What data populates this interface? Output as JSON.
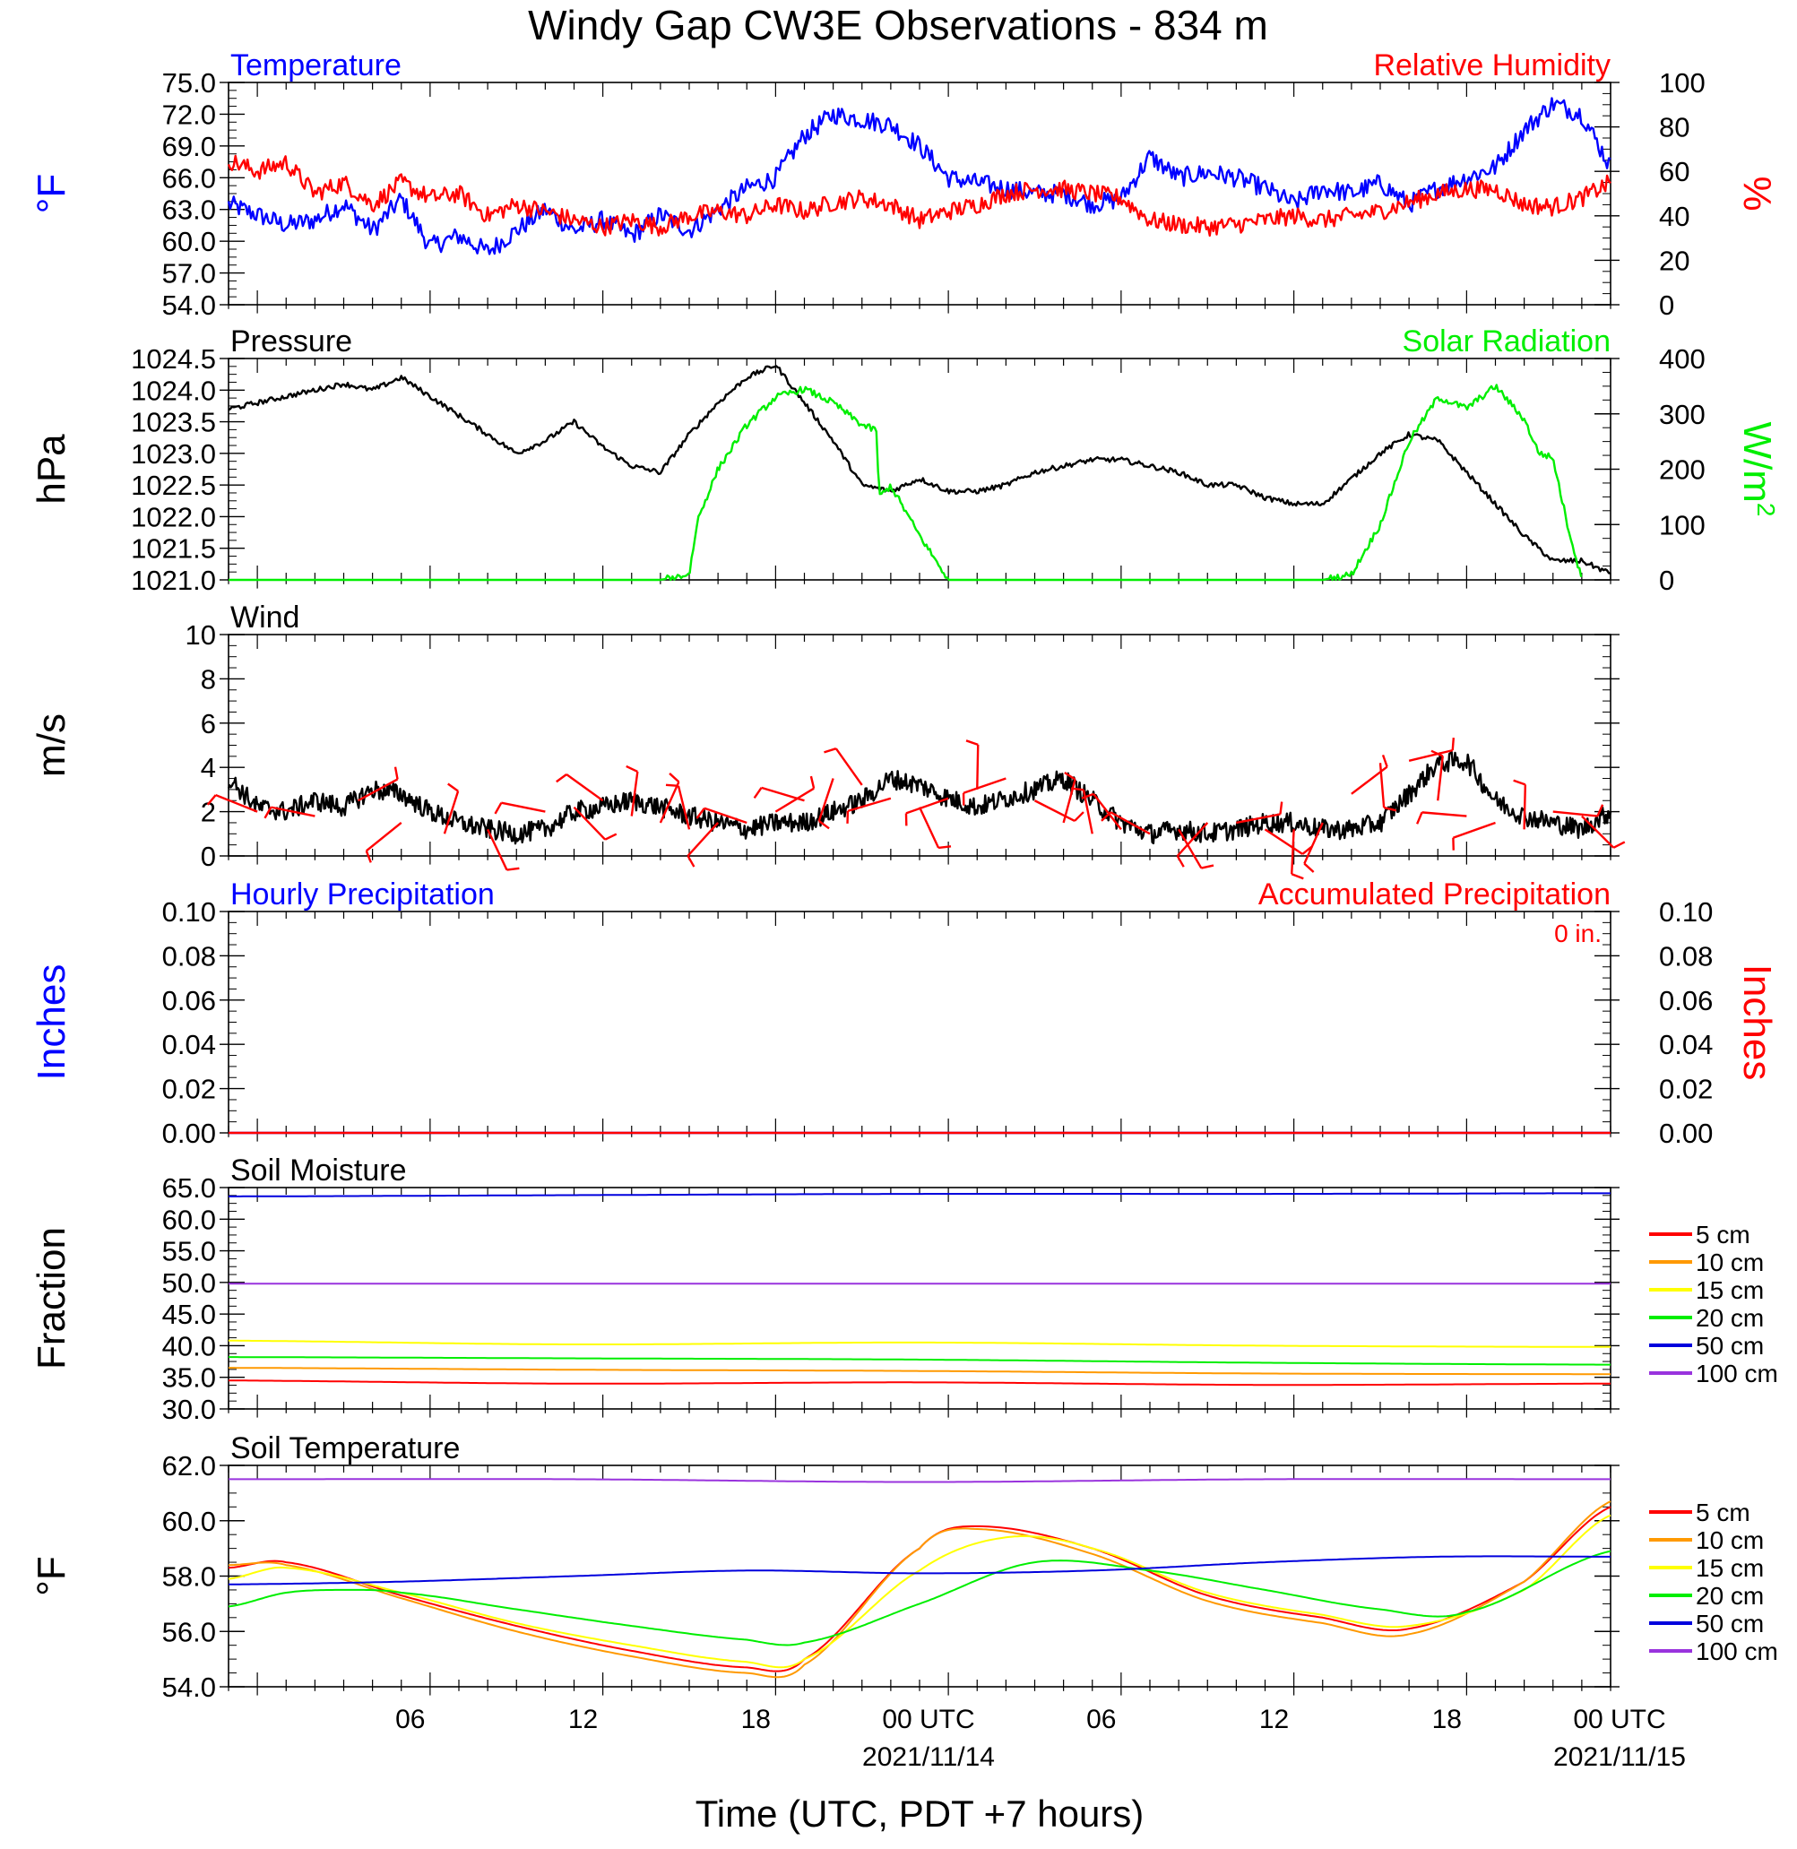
{
  "figure": {
    "title": "Windy Gap CW3E Observations - 834 m",
    "xlabel": "Time (UTC, PDT +7 hours)",
    "xticks": [
      "06",
      "12",
      "18",
      "00 UTC",
      "06",
      "12",
      "18",
      "00 UTC"
    ],
    "xdates": [
      "2021/11/14",
      "2021/11/15"
    ]
  },
  "colors": {
    "temperature": "#0000ff",
    "humidity": "#ff0000",
    "pressure": "#000000",
    "solar": "#00ee00",
    "wind": "#000000",
    "barbs": "#ff0000",
    "hourly_precip": "#0000ff",
    "accum_precip": "#ff0000",
    "depths": [
      "#ff0000",
      "#ff9900",
      "#ffff00",
      "#00ee00",
      "#0000dd",
      "#9933dd"
    ]
  },
  "chart_data": [
    {
      "type": "line",
      "title_left": "Temperature",
      "title_right": "Relative Humidity",
      "ylabel_left": "°F",
      "ylabel_right": "%",
      "yticks_left": [
        "54.0",
        "57.0",
        "60.0",
        "63.0",
        "66.0",
        "69.0",
        "72.0",
        "75.0"
      ],
      "yticks_right": [
        "0",
        "20",
        "40",
        "60",
        "80",
        "100"
      ],
      "ylim_left": [
        54,
        75
      ],
      "ylim_right": [
        0,
        100
      ],
      "xlim_hours": [
        -1,
        47
      ],
      "series": [
        {
          "axis": "left",
          "x": [
            -1,
            0,
            1,
            2,
            3,
            4,
            5,
            6,
            7,
            8,
            9,
            10,
            11,
            12,
            13,
            14,
            15,
            16,
            17,
            18,
            19,
            20,
            21,
            22,
            23,
            24,
            25,
            26,
            27,
            28,
            29,
            30,
            31,
            32,
            33,
            34,
            35,
            36,
            37,
            38,
            39,
            40,
            41,
            42,
            43,
            44,
            45,
            46,
            47
          ],
          "y": [
            63.5,
            62.5,
            61.5,
            62,
            63.5,
            61,
            64,
            59.5,
            60.5,
            59,
            61,
            63,
            61,
            62,
            60.5,
            62.5,
            61,
            63,
            65,
            66,
            70,
            72,
            71.5,
            71,
            69,
            66,
            65.5,
            65,
            64.5,
            64.5,
            63.5,
            64,
            68,
            66,
            66.5,
            66,
            65,
            63.5,
            65,
            64.5,
            65.5,
            63.5,
            65,
            66,
            67,
            70.5,
            73,
            72,
            67
          ]
        },
        {
          "axis": "right",
          "x": [
            -1,
            0,
            1,
            2,
            3,
            4,
            5,
            6,
            7,
            8,
            9,
            10,
            11,
            12,
            13,
            14,
            15,
            16,
            17,
            18,
            19,
            20,
            21,
            22,
            23,
            24,
            25,
            26,
            27,
            28,
            29,
            30,
            31,
            32,
            33,
            34,
            35,
            36,
            37,
            38,
            39,
            40,
            41,
            42,
            43,
            44,
            45,
            46,
            47
          ],
          "y": [
            65,
            60,
            64,
            50,
            55,
            45,
            55,
            48,
            50,
            40,
            45,
            42,
            38,
            35,
            38,
            35,
            40,
            42,
            40,
            45,
            42,
            46,
            48,
            45,
            38,
            42,
            45,
            50,
            52,
            52,
            50,
            48,
            38,
            36,
            35,
            36,
            38,
            40,
            38,
            40,
            42,
            46,
            50,
            52,
            52,
            45,
            44,
            48,
            55
          ]
        }
      ]
    },
    {
      "type": "line",
      "title_left": "Pressure",
      "title_right": "Solar Radiation",
      "ylabel_left": "hPa",
      "ylabel_right": "W/m",
      "ylabel_right_sup": "2",
      "yticks_left": [
        "1021.0",
        "1021.5",
        "1022.0",
        "1022.5",
        "1023.0",
        "1023.5",
        "1024.0",
        "1024.5"
      ],
      "yticks_right": [
        "0",
        "100",
        "200",
        "300",
        "400"
      ],
      "ylim_left": [
        1021,
        1024.5
      ],
      "ylim_right": [
        0,
        400
      ],
      "xlim_hours": [
        -1,
        47
      ],
      "series": [
        {
          "axis": "left",
          "x": [
            -1,
            0,
            1,
            2,
            3,
            4,
            5,
            6,
            7,
            8,
            9,
            10,
            11,
            12,
            13,
            14,
            15,
            16,
            17,
            18,
            19,
            20,
            21,
            22,
            23,
            24,
            25,
            26,
            27,
            28,
            29,
            30,
            31,
            32,
            33,
            34,
            35,
            36,
            37,
            38,
            39,
            40,
            41,
            42,
            43,
            44,
            45,
            46,
            47
          ],
          "y": [
            1023.7,
            1023.8,
            1023.9,
            1024.0,
            1024.1,
            1024.0,
            1024.2,
            1023.9,
            1023.6,
            1023.3,
            1023.0,
            1023.2,
            1023.5,
            1023.1,
            1022.8,
            1022.7,
            1023.3,
            1023.8,
            1024.2,
            1024.4,
            1023.8,
            1023.2,
            1022.5,
            1022.4,
            1022.6,
            1022.4,
            1022.4,
            1022.5,
            1022.7,
            1022.8,
            1022.9,
            1022.9,
            1022.8,
            1022.7,
            1022.5,
            1022.5,
            1022.3,
            1022.2,
            1022.2,
            1022.6,
            1023.0,
            1023.3,
            1023.2,
            1022.7,
            1022.2,
            1021.7,
            1021.3,
            1021.3,
            1021.1
          ]
        },
        {
          "axis": "right",
          "x": [
            -1,
            14,
            15,
            15.3,
            16,
            17,
            18,
            19,
            20,
            21,
            21.5,
            21.6,
            22,
            23,
            24,
            37,
            38,
            39,
            40,
            41,
            42,
            43,
            44,
            44.5,
            45,
            45.5,
            46
          ],
          "y": [
            0,
            0,
            10,
            110,
            200,
            280,
            330,
            345,
            320,
            280,
            270,
            150,
            170,
            80,
            0,
            0,
            10,
            100,
            250,
            330,
            310,
            350,
            290,
            230,
            220,
            100,
            0
          ]
        }
      ]
    },
    {
      "type": "line",
      "title_left": "Wind",
      "ylabel_left": "m/s",
      "yticks_left": [
        "0",
        "2",
        "4",
        "6",
        "8",
        "10"
      ],
      "ylim_left": [
        0,
        10
      ],
      "xlim_hours": [
        -1,
        47
      ],
      "series": [
        {
          "axis": "left",
          "x": [
            -1,
            0,
            1,
            2,
            3,
            4,
            5,
            6,
            7,
            8,
            9,
            10,
            11,
            12,
            13,
            14,
            15,
            16,
            17,
            18,
            19,
            20,
            21,
            22,
            23,
            24,
            25,
            26,
            27,
            28,
            29,
            30,
            31,
            32,
            33,
            34,
            35,
            36,
            37,
            38,
            39,
            40,
            41,
            42,
            43,
            44,
            45,
            46,
            47
          ],
          "y": [
            3.5,
            2.2,
            2.0,
            2.5,
            2.2,
            3.0,
            2.8,
            2.0,
            1.5,
            1.2,
            1.0,
            1.2,
            2.0,
            2.2,
            2.5,
            2.2,
            1.8,
            1.5,
            1.2,
            1.5,
            1.5,
            2.0,
            2.5,
            3.5,
            3.2,
            2.6,
            2.2,
            2.6,
            3.0,
            3.5,
            2.5,
            1.5,
            1.0,
            1.2,
            1.0,
            1.2,
            1.5,
            1.5,
            1.2,
            1.2,
            1.5,
            2.8,
            4.2,
            4.3,
            2.5,
            1.8,
            1.5,
            1.2,
            2.0
          ]
        }
      ],
      "barbs": {
        "x": [
          0,
          2,
          3.5,
          5,
          6.5,
          8,
          10,
          11,
          12,
          13,
          14,
          15,
          16,
          17,
          18,
          19,
          20,
          21,
          22,
          23,
          24,
          25,
          26,
          27,
          28,
          29,
          30,
          31,
          32,
          33,
          34,
          35,
          36,
          37,
          38,
          39,
          40,
          41,
          42,
          43,
          44,
          45,
          46
        ],
        "speed": [
          2.0,
          1.8,
          2.5,
          1.5,
          1.0,
          1.2,
          2.0,
          2.2,
          2.5,
          1.8,
          1.5,
          1.2,
          1.5,
          1.5,
          2.0,
          2.5,
          3.5,
          3.2,
          2.6,
          2.2,
          2.6,
          3.0,
          3.5,
          2.5,
          1.5,
          1.0,
          1.2,
          1.0,
          1.2,
          1.5,
          1.5,
          1.2,
          1.2,
          1.5,
          2.8,
          4.2,
          4.3,
          2.5,
          1.8,
          1.5,
          1.2,
          2.0,
          1.8
        ]
      }
    },
    {
      "type": "line",
      "title_left": "Hourly Precipitation",
      "title_right": "Accumulated Precipitation",
      "annotation": "0 in.",
      "ylabel_left": "Inches",
      "ylabel_right": "Inches",
      "yticks_left": [
        "0.00",
        "0.02",
        "0.04",
        "0.06",
        "0.08",
        "0.10"
      ],
      "yticks_right": [
        "0.00",
        "0.02",
        "0.04",
        "0.06",
        "0.08",
        "0.10"
      ],
      "ylim_left": [
        0,
        0.1
      ],
      "ylim_right": [
        0,
        0.1
      ],
      "xlim_hours": [
        -1,
        47
      ],
      "series": [
        {
          "axis": "left",
          "x": [
            -1,
            47
          ],
          "y": [
            0,
            0
          ]
        },
        {
          "axis": "right",
          "x": [
            -1,
            47
          ],
          "y": [
            0,
            0
          ]
        }
      ]
    },
    {
      "type": "line",
      "title_left": "Soil Moisture",
      "ylabel_left": "Fraction",
      "yticks_left": [
        "30.0",
        "35.0",
        "40.0",
        "45.0",
        "50.0",
        "55.0",
        "60.0",
        "65.0"
      ],
      "ylim_left": [
        30,
        65
      ],
      "xlim_hours": [
        -1,
        47
      ],
      "legend": [
        "5 cm",
        "10 cm",
        "15 cm",
        "20 cm",
        "50 cm",
        "100 cm"
      ],
      "series": [
        {
          "name": "5 cm",
          "x": [
            -1,
            11,
            23,
            35,
            47
          ],
          "y": [
            34.5,
            34.0,
            34.2,
            33.8,
            34.0
          ]
        },
        {
          "name": "10 cm",
          "x": [
            -1,
            11,
            23,
            35,
            47
          ],
          "y": [
            36.5,
            36.2,
            36.0,
            35.6,
            35.5
          ]
        },
        {
          "name": "15 cm",
          "x": [
            -1,
            11,
            23,
            35,
            47
          ],
          "y": [
            40.8,
            40.2,
            40.5,
            40.0,
            39.8
          ]
        },
        {
          "name": "20 cm",
          "x": [
            -1,
            11,
            23,
            35,
            47
          ],
          "y": [
            38.2,
            38.0,
            37.8,
            37.3,
            37.0
          ]
        },
        {
          "name": "50 cm",
          "x": [
            -1,
            11,
            23,
            35,
            47
          ],
          "y": [
            63.6,
            63.8,
            64.0,
            64.0,
            64.1
          ]
        },
        {
          "name": "100 cm",
          "x": [
            -1,
            11,
            23,
            35,
            47
          ],
          "y": [
            49.8,
            49.8,
            49.8,
            49.8,
            49.8
          ]
        }
      ]
    },
    {
      "type": "line",
      "title_left": "Soil Temperature",
      "ylabel_left": "°F",
      "yticks_left": [
        "54.0",
        "56.0",
        "58.0",
        "60.0",
        "62.0"
      ],
      "ylim_left": [
        54,
        62
      ],
      "xlim_hours": [
        -1,
        47
      ],
      "legend": [
        "5 cm",
        "10 cm",
        "15 cm",
        "20 cm",
        "50 cm",
        "100 cm"
      ],
      "series": [
        {
          "name": "5 cm",
          "x": [
            -1,
            1,
            5,
            9,
            13,
            17,
            19,
            23,
            25,
            29,
            33,
            37,
            40,
            44,
            47
          ],
          "y": [
            58.3,
            58.5,
            57.3,
            56.2,
            55.3,
            54.7,
            55.0,
            59.0,
            59.8,
            59.0,
            57.3,
            56.5,
            56.1,
            57.8,
            60.5
          ]
        },
        {
          "name": "10 cm",
          "x": [
            -1,
            1,
            5,
            9,
            13,
            17,
            19,
            23,
            25,
            29,
            33,
            37,
            40,
            44,
            47
          ],
          "y": [
            58.4,
            58.4,
            57.2,
            56.0,
            55.1,
            54.5,
            54.8,
            59.0,
            59.7,
            58.8,
            57.1,
            56.3,
            55.9,
            57.8,
            60.7
          ]
        },
        {
          "name": "15 cm",
          "x": [
            -1,
            1,
            5,
            9,
            13,
            17,
            19,
            23,
            26,
            29,
            33,
            37,
            40,
            44,
            47
          ],
          "y": [
            57.9,
            58.3,
            57.4,
            56.3,
            55.5,
            54.9,
            55.0,
            58.2,
            59.4,
            59.0,
            57.4,
            56.6,
            56.2,
            57.5,
            60.2
          ]
        },
        {
          "name": "20 cm",
          "x": [
            -1,
            1,
            3,
            5,
            9,
            13,
            17,
            19,
            23,
            27,
            31,
            35,
            39,
            42,
            47
          ],
          "y": [
            56.9,
            57.4,
            57.5,
            57.4,
            56.8,
            56.2,
            55.7,
            55.6,
            57.0,
            58.5,
            58.2,
            57.5,
            56.8,
            56.7,
            58.9
          ]
        },
        {
          "name": "50 cm",
          "x": [
            -1,
            5,
            11,
            17,
            23,
            29,
            35,
            41,
            47
          ],
          "y": [
            57.7,
            57.8,
            58.0,
            58.2,
            58.1,
            58.2,
            58.5,
            58.7,
            58.7
          ]
        },
        {
          "name": "100 cm",
          "x": [
            -1,
            11,
            23,
            35,
            47
          ],
          "y": [
            61.5,
            61.5,
            61.4,
            61.5,
            61.5
          ]
        }
      ]
    }
  ]
}
